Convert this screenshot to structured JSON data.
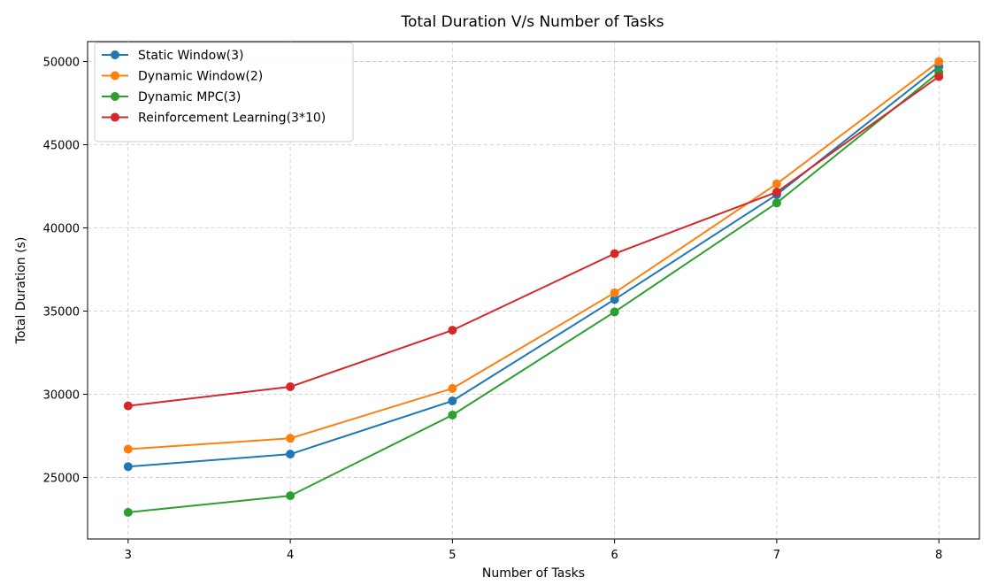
{
  "chart_data": {
    "type": "line",
    "title": "Total Duration V/s Number of Tasks",
    "xlabel": "Number of Tasks",
    "ylabel": "Total Duration (s)",
    "x": [
      3,
      4,
      5,
      6,
      7,
      8
    ],
    "xlim": [
      2.75,
      8.25
    ],
    "ylim": [
      21300,
      51200
    ],
    "xticks": [
      3,
      4,
      5,
      6,
      7,
      8
    ],
    "yticks": [
      25000,
      30000,
      35000,
      40000,
      45000,
      50000
    ],
    "grid": true,
    "legend_position": "upper-left",
    "series": [
      {
        "name": "Static Window(3)",
        "color": "#1f77b4",
        "values": [
          25650,
          26400,
          29600,
          35700,
          42000,
          49700
        ]
      },
      {
        "name": "Dynamic Window(2)",
        "color": "#ff7f0e",
        "values": [
          26700,
          27350,
          30350,
          36100,
          42650,
          50000
        ]
      },
      {
        "name": "Dynamic MPC(3)",
        "color": "#2ca02c",
        "values": [
          22900,
          23900,
          28750,
          34950,
          41500,
          49350
        ]
      },
      {
        "name": "Reinforcement Learning(3*10)",
        "color": "#d62728",
        "values": [
          29300,
          30450,
          33850,
          38450,
          42150,
          49100
        ]
      }
    ]
  }
}
